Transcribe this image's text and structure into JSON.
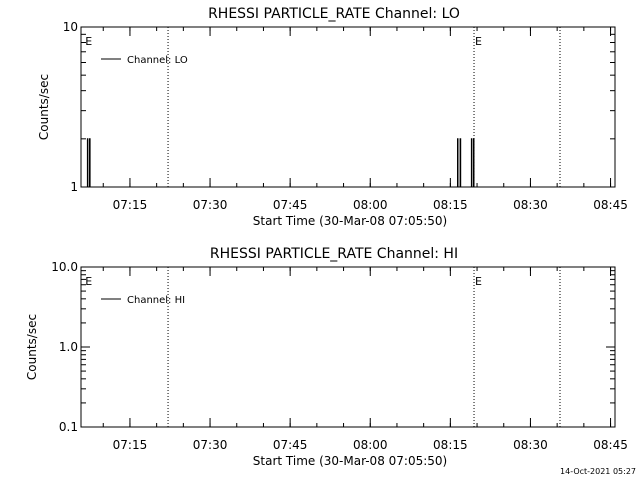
{
  "footer": {
    "timestamp": "14-Oct-2021 05:27"
  },
  "chart_data": [
    {
      "type": "line",
      "title": "RHESSI PARTICLE_RATE Channel: LO",
      "xlabel": "Start Time (30-Mar-08 07:05:50)",
      "ylabel": "Counts/sec",
      "x_units": "minutes after 07:05:50",
      "xlim": [
        0,
        100
      ],
      "yscale": "log",
      "ylim": [
        1,
        10
      ],
      "ytick_labels": [
        {
          "value": 1,
          "label": "1"
        },
        {
          "value": 10,
          "label": "10"
        }
      ],
      "xtick_labels": [
        "07:15",
        "07:30",
        "07:45",
        "08:00",
        "08:15",
        "08:30",
        "08:45"
      ],
      "xtick_values": [
        9.1667,
        24.1667,
        39.1667,
        54.1667,
        69.1667,
        84.1667,
        99.1667
      ],
      "grid": false,
      "legend": {
        "position": "top-left",
        "entries": [
          "Channel: LO"
        ]
      },
      "markers": [
        {
          "label": "E",
          "x": 0.6,
          "line": false
        },
        {
          "label": "",
          "x": 16.3,
          "line": true
        },
        {
          "label": "E",
          "x": 73.6,
          "line": true
        },
        {
          "label": "",
          "x": 89.7,
          "line": true
        }
      ],
      "series": [
        {
          "name": "Channel: LO",
          "segments": [
            [
              [
                0.6,
                1
              ],
              [
                1.2,
                1
              ],
              [
                1.2,
                2
              ],
              [
                1.3,
                2
              ],
              [
                1.3,
                1
              ],
              [
                1.6,
                1
              ],
              [
                1.6,
                2
              ],
              [
                1.7,
                2
              ],
              [
                1.7,
                1
              ]
            ],
            [
              [
                69.5,
                1
              ],
              [
                70.5,
                1
              ],
              [
                70.5,
                2
              ],
              [
                70.6,
                2
              ],
              [
                70.6,
                1
              ],
              [
                71.0,
                1
              ],
              [
                71.0,
                2
              ],
              [
                71.1,
                2
              ],
              [
                71.1,
                1
              ]
            ],
            [
              [
                72.6,
                1
              ],
              [
                73.1,
                1
              ],
              [
                73.1,
                2
              ],
              [
                73.2,
                2
              ],
              [
                73.2,
                1
              ],
              [
                73.5,
                1
              ],
              [
                73.5,
                2
              ],
              [
                73.6,
                2
              ],
              [
                73.6,
                1
              ],
              [
                74.3,
                1
              ]
            ]
          ]
        }
      ]
    },
    {
      "type": "line",
      "title": "RHESSI PARTICLE_RATE Channel: HI",
      "xlabel": "Start Time (30-Mar-08 07:05:50)",
      "ylabel": "Counts/sec",
      "x_units": "minutes after 07:05:50",
      "xlim": [
        0,
        100
      ],
      "yscale": "log",
      "ylim": [
        0.1,
        10
      ],
      "ytick_labels": [
        {
          "value": 0.1,
          "label": "0.1"
        },
        {
          "value": 1,
          "label": "1.0"
        },
        {
          "value": 10,
          "label": "10.0"
        }
      ],
      "xtick_labels": [
        "07:15",
        "07:30",
        "07:45",
        "08:00",
        "08:15",
        "08:30",
        "08:45"
      ],
      "xtick_values": [
        9.1667,
        24.1667,
        39.1667,
        54.1667,
        69.1667,
        84.1667,
        99.1667
      ],
      "grid": false,
      "legend": {
        "position": "top-left",
        "entries": [
          "Channel: HI"
        ]
      },
      "markers": [
        {
          "label": "E",
          "x": 0.6,
          "line": false
        },
        {
          "label": "",
          "x": 16.3,
          "line": true
        },
        {
          "label": "E",
          "x": 73.6,
          "line": true
        },
        {
          "label": "",
          "x": 89.7,
          "line": true
        }
      ],
      "series": [
        {
          "name": "Channel: HI",
          "segments": []
        }
      ]
    }
  ]
}
